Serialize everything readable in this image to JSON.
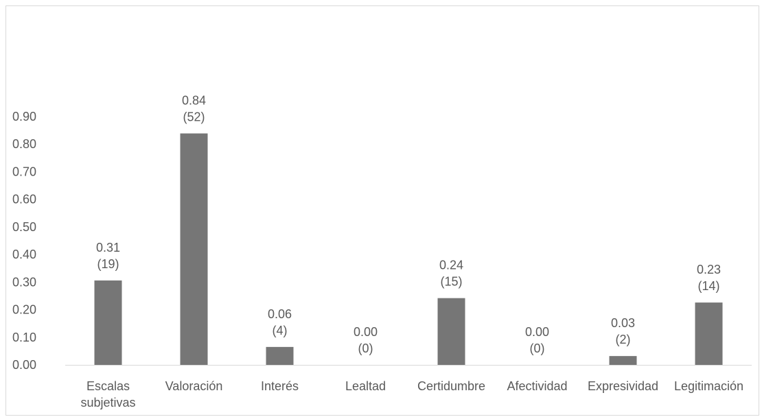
{
  "chart_data": {
    "type": "bar",
    "categories": [
      "Escalas subjetivas",
      "Valoración",
      "Interés",
      "Lealtad",
      "Certidumbre",
      "Afectividad",
      "Expresividad",
      "Legitimación"
    ],
    "category_lines": [
      [
        "Escalas",
        "subjetivas"
      ],
      [
        "Valoración"
      ],
      [
        "Interés"
      ],
      [
        "Lealtad"
      ],
      [
        "Certidumbre"
      ],
      [
        "Afectividad"
      ],
      [
        "Expresividad"
      ],
      [
        "Legitimación"
      ]
    ],
    "values": [
      0.306,
      0.839,
      0.065,
      0.0,
      0.242,
      0.0,
      0.032,
      0.226
    ],
    "data_labels": [
      [
        "0.31",
        "(19)"
      ],
      [
        "0.84",
        "(52)"
      ],
      [
        "0.06",
        "(4)"
      ],
      [
        "0.00",
        "(0)"
      ],
      [
        "0.24",
        "(15)"
      ],
      [
        "0.00",
        "(0)"
      ],
      [
        "0.03",
        "(2)"
      ],
      [
        "0.23",
        "(14)"
      ]
    ],
    "y_ticks": [
      "0.00",
      "0.10",
      "0.20",
      "0.30",
      "0.40",
      "0.50",
      "0.60",
      "0.70",
      "0.80",
      "0.90"
    ],
    "ylim": [
      0,
      0.9
    ],
    "title": "",
    "xlabel": "",
    "ylabel": "",
    "grid": false,
    "bar_color": "#767676"
  }
}
